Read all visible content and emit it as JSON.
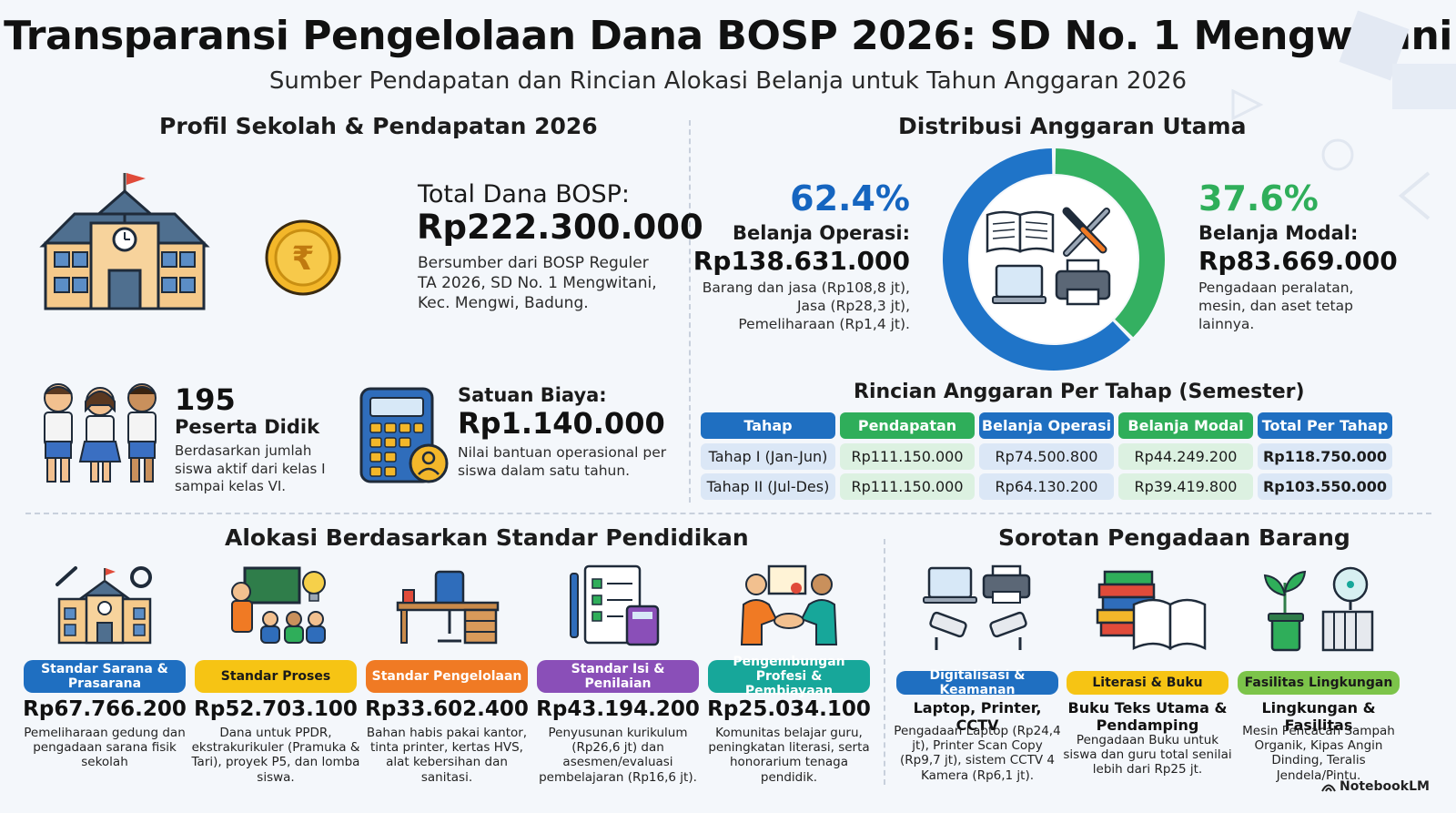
{
  "header": {
    "title": "Transparansi Pengelolaan Dana BOSP 2026: SD No. 1 Mengwitani",
    "subtitle": "Sumber Pendapatan dan Rincian Alokasi Belanja untuk Tahun Anggaran 2026"
  },
  "profile": {
    "heading": "Profil Sekolah & Pendapatan 2026",
    "total_label": "Total Dana BOSP:",
    "total_value": "Rp222.300.000",
    "total_desc": "Bersumber dari BOSP Reguler TA 2026, SD No. 1 Mengwitani, Kec. Mengwi, Badung.",
    "students_count": "195",
    "students_label": "Peserta Didik",
    "students_desc": "Berdasarkan jumlah siswa aktif dari kelas I sampai kelas VI.",
    "unit_label": "Satuan Biaya:",
    "unit_value": "Rp1.140.000",
    "unit_desc": "Nilai bantuan operasional per siswa dalam satu tahun."
  },
  "distribution": {
    "heading": "Distribusi Anggaran Utama",
    "operasi": {
      "pct": "62.4%",
      "label": "Belanja Operasi:",
      "value": "Rp138.631.000",
      "desc": [
        "Barang dan jasa (Rp108,8 jt),",
        "Jasa (Rp28,3 jt),",
        "Pemeliharaan (Rp1,4 jt)."
      ],
      "share": 62.4,
      "color": "#1f74c8"
    },
    "modal": {
      "pct": "37.6%",
      "label": "Belanja Modal:",
      "value": "Rp83.669.000",
      "desc": "Pengadaan peralatan, mesin, dan aset tetap lainnya.",
      "share": 37.6,
      "color": "#34b061"
    }
  },
  "table": {
    "heading": "Rincian Anggaran Per Tahap (Semester)",
    "headers": [
      "Tahap",
      "Pendapatan",
      "Belanja Operasi",
      "Belanja Modal",
      "Total Per Tahap"
    ],
    "header_colors": [
      "#1f6fc1",
      "#2fae5a",
      "#1f6fc1",
      "#2fae5a",
      "#1f6fc1"
    ],
    "rows": [
      [
        "Tahap I (Jan-Jun)",
        "Rp111.150.000",
        "Rp74.500.800",
        "Rp44.249.200",
        "Rp118.750.000"
      ],
      [
        "Tahap II (Jul-Des)",
        "Rp111.150.000",
        "Rp64.130.200",
        "Rp39.419.800",
        "Rp103.550.000"
      ]
    ]
  },
  "standards": {
    "heading": "Alokasi Berdasarkan Standar Pendidikan",
    "items": [
      {
        "label": "Standar Sarana & Prasarana",
        "amount": "Rp67.766.200",
        "desc": "Pemeliharaan gedung dan pengadaan sarana fisik sekolah",
        "color": "#1f6fc1",
        "icon": "school-tools-icon"
      },
      {
        "label": "Standar Proses",
        "amount": "Rp52.703.100",
        "desc": "Dana untuk PPDR, ekstrakurikuler (Pramuka & Tari), proyek P5, dan lomba siswa.",
        "color": "#f6c414",
        "icon": "teacher-icon"
      },
      {
        "label": "Standar Pengelolaan",
        "amount": "Rp33.602.400",
        "desc": "Bahan habis pakai kantor, tinta printer, kertas HVS, alat kebersihan dan sanitasi.",
        "color": "#f07a24",
        "icon": "desk-icon"
      },
      {
        "label": "Standar Isi & Penilaian",
        "amount": "Rp43.194.200",
        "desc": "Penyusunan kurikulum (Rp26,6 jt) dan asesmen/evaluasi pembelajaran (Rp16,6 jt).",
        "color": "#8a4fb8",
        "icon": "checklist-icon"
      },
      {
        "label": "Pengembungan Profesi & Pembiayaan",
        "amount": "Rp25.034.100",
        "desc": "Komunitas belajar guru, peningkatan literasi, serta honorarium tenaga pendidik.",
        "color": "#17a79a",
        "icon": "handshake-icon"
      }
    ]
  },
  "procurement": {
    "heading": "Sorotan Pengadaan Barang",
    "items": [
      {
        "label": "Digitalisasi & Keamanan",
        "title": "Laptop, Printer, CCTV",
        "desc": "Pengadaan Laptop (Rp24,4 jt), Printer Scan Copy (Rp9,7 jt), sistem CCTV 4 Kamera (Rp6,1 jt).",
        "color": "#1f6fc1",
        "icon": "devices-icon"
      },
      {
        "label": "Literasi & Buku",
        "title": "Buku Teks Utama & Pendamping",
        "desc": "Pengadaan Buku untuk siswa dan guru total senilai lebih dari Rp25 jt.",
        "color": "#f6c414",
        "icon": "books-icon"
      },
      {
        "label": "Fasilitas Lingkungan",
        "title": "Lingkungan & Fasilitas",
        "desc": "Mesin Pencacah Sampah Organik, Kipas Angin Dinding, Teralis Jendela/Pintu.",
        "color": "#7cc44a",
        "icon": "plant-fan-icon"
      }
    ]
  },
  "footer": {
    "brand": "NotebookLM"
  }
}
